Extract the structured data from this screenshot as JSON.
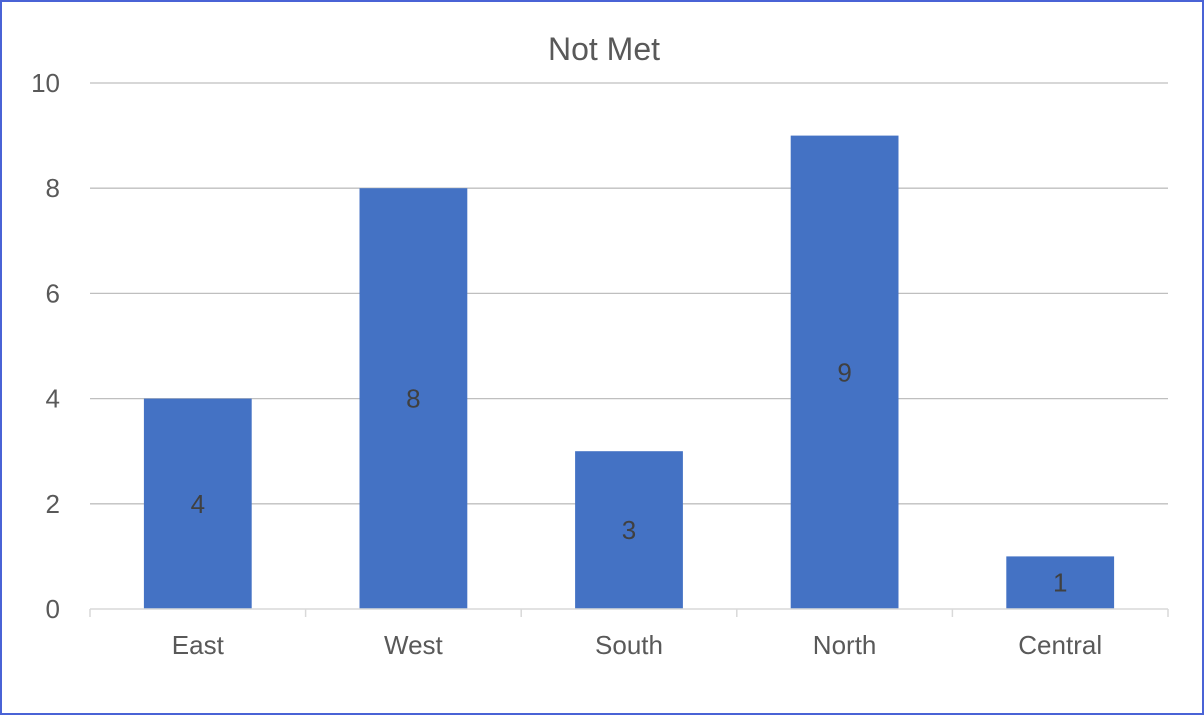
{
  "chart_data": {
    "type": "bar",
    "title": "Not Met",
    "xlabel": "",
    "ylabel": "",
    "categories": [
      "East",
      "West",
      "South",
      "North",
      "Central"
    ],
    "values": [
      4,
      8,
      3,
      9,
      1
    ],
    "ylim": [
      0,
      10
    ],
    "yticks": [
      "0",
      "2",
      "4",
      "6",
      "8",
      "10"
    ],
    "data_labels": [
      "4",
      "8",
      "3",
      "9",
      "1"
    ],
    "grid": true,
    "legend": "none",
    "colors": {
      "bar": "#4472c4",
      "gridline": "#bfbfbf",
      "axis": "#d9d9d9",
      "text": "#595959",
      "border": "#4a63d6"
    }
  }
}
